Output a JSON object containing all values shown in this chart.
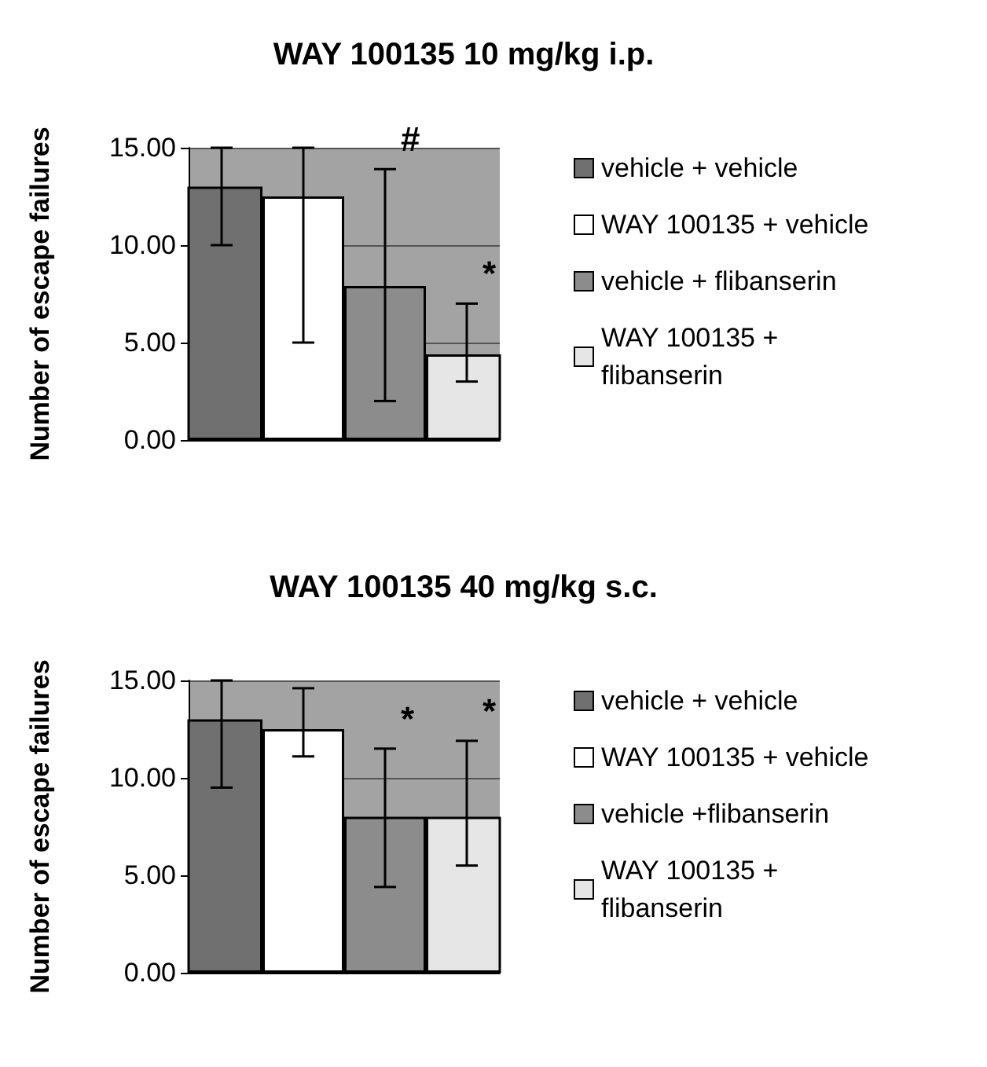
{
  "chart_data": [
    {
      "type": "bar",
      "title": "WAY 100135 10 mg/kg i.p.",
      "ylabel": "Number of escape failures",
      "categories": [
        null
      ],
      "series": [
        {
          "name": "vehicle + vehicle",
          "color": "#707070",
          "values": [
            13.0
          ],
          "errors": [
            [
              10.0,
              15.0
            ]
          ]
        },
        {
          "name": "WAY 100135 + vehicle",
          "color": "#ffffff",
          "values": [
            12.5
          ],
          "errors": [
            [
              5.0,
              15.0
            ]
          ]
        },
        {
          "name": "vehicle + flibanserin",
          "color": "#8c8c8c",
          "values": [
            7.9
          ],
          "errors": [
            [
              2.0,
              13.9
            ]
          ]
        },
        {
          "name": "WAY 100135 + flibanserin",
          "color": "#e6e6e6",
          "values": [
            4.4
          ],
          "errors": [
            [
              3.0,
              7.0
            ]
          ]
        }
      ],
      "annotations": [
        "#",
        "*"
      ],
      "ylim": [
        0,
        15
      ],
      "yticks": [
        {
          "value": 0,
          "label": "0.00"
        },
        {
          "value": 5,
          "label": "5.00"
        },
        {
          "value": 10,
          "label": "10.00"
        },
        {
          "value": 15,
          "label": "15.00"
        }
      ],
      "grid": "y",
      "legend": "right"
    },
    {
      "type": "bar",
      "title": "WAY 100135 40 mg/kg s.c.",
      "ylabel": "Number of escape failures",
      "categories": [
        null
      ],
      "series": [
        {
          "name": "vehicle + vehicle",
          "color": "#707070",
          "values": [
            13.0
          ],
          "errors": [
            [
              9.5,
              15.0
            ]
          ]
        },
        {
          "name": "WAY 100135 + vehicle",
          "color": "#ffffff",
          "values": [
            12.5
          ],
          "errors": [
            [
              11.1,
              14.6
            ]
          ]
        },
        {
          "name": "vehicle +flibanserin",
          "color": "#8c8c8c",
          "values": [
            8.0
          ],
          "errors": [
            [
              4.4,
              11.5
            ]
          ]
        },
        {
          "name": "WAY 100135 + flibanserin",
          "color": "#e6e6e6",
          "values": [
            8.0
          ],
          "errors": [
            [
              5.5,
              11.9
            ]
          ]
        }
      ],
      "annotations": [
        "*",
        "*"
      ],
      "ylim": [
        0,
        15
      ],
      "yticks": [
        {
          "value": 0,
          "label": "0.00"
        },
        {
          "value": 5,
          "label": "5.00"
        },
        {
          "value": 10,
          "label": "10.00"
        },
        {
          "value": 15,
          "label": "15.00"
        }
      ],
      "grid": "y",
      "legend": "right"
    }
  ]
}
